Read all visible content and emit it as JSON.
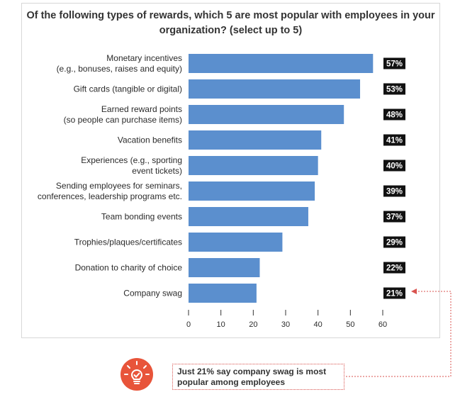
{
  "colors": {
    "bar": "#5b8fce",
    "value_box": "#111111",
    "accent": "#e8543a",
    "connector": "#d9534f"
  },
  "chart_data": {
    "type": "bar",
    "orientation": "horizontal",
    "title": "Of the following types of rewards, which 5 are most popular with employees in your organization? (select up to 5)",
    "categories": [
      [
        "Monetary incentives",
        "(e.g., bonuses, raises and equity)"
      ],
      [
        "Gift cards (tangible or digital)"
      ],
      [
        "Earned reward points",
        "(so people can purchase items)"
      ],
      [
        "Vacation benefits"
      ],
      [
        "Experiences (e.g., sporting",
        "event tickets)"
      ],
      [
        "Sending employees for seminars,",
        "conferences, leadership programs etc."
      ],
      [
        "Team bonding events"
      ],
      [
        "Trophies/plaques/certificates"
      ],
      [
        "Donation to charity of choice"
      ],
      [
        "Company swag"
      ]
    ],
    "values": [
      57,
      53,
      48,
      41,
      40,
      39,
      37,
      29,
      22,
      21
    ],
    "value_labels": [
      "57%",
      "53%",
      "48%",
      "41%",
      "40%",
      "39%",
      "37%",
      "29%",
      "22%",
      "21%"
    ],
    "xlim": [
      0,
      60
    ],
    "xticks": [
      "0",
      "10",
      "20",
      "30",
      "40",
      "50",
      "60"
    ],
    "grid": false,
    "legend": "none"
  },
  "callout": {
    "text": "Just 21% say company swag is most popular among employees",
    "icon": "lightbulb-icon"
  }
}
